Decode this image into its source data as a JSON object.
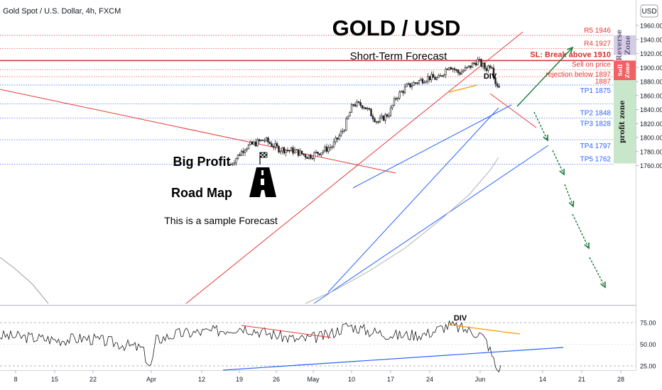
{
  "header": {
    "symbol_line": "Gold Spot / U.S. Dollar, 4h, FXCM",
    "currency_badge": "USD"
  },
  "chart_data": {
    "type": "candlestick",
    "title": "GOLD / USD",
    "subtitle": "Short-Term Forecast",
    "y_axis": {
      "range": [
        1760,
        1968
      ],
      "ticks": [
        "1960.00",
        "1940.00",
        "1920.00",
        "1900.00",
        "1880.00",
        "1860.00",
        "1840.00",
        "1820.00",
        "1800.00",
        "1780.00",
        "1760.00"
      ]
    },
    "x_axis": {
      "ticks": [
        "8",
        "15",
        "22",
        "Apr",
        "12",
        "19",
        "26",
        "May",
        "10",
        "17",
        "24",
        "Jun",
        "14",
        "21",
        "28"
      ]
    },
    "levels": [
      {
        "label": "R5 1946",
        "value": 1946,
        "color": "#e53935"
      },
      {
        "label": "R4 1927",
        "value": 1927,
        "color": "#e53935"
      },
      {
        "label": "SL: Break above 1910",
        "value": 1910,
        "color": "#d32f2f"
      },
      {
        "label": "Sell on price",
        "value": 1897,
        "color": "#e53935"
      },
      {
        "label": "rejection below 1897",
        "value": 1897,
        "color": "#e53935"
      },
      {
        "label": "1887",
        "value": 1887,
        "color": "#e53935"
      },
      {
        "label": "TP1 1875",
        "value": 1875,
        "color": "#2962ff"
      },
      {
        "label": "TP2 1848",
        "value": 1848,
        "color": "#2962ff"
      },
      {
        "label": "TP3 1828",
        "value": 1828,
        "color": "#2962ff"
      },
      {
        "label": "TP4 1797",
        "value": 1797,
        "color": "#2962ff"
      },
      {
        "label": "TP5 1762",
        "value": 1762,
        "color": "#2962ff"
      }
    ],
    "zones": [
      {
        "label": "Reverse Zone",
        "from": 1918,
        "to": 1946,
        "color": "#d5cce6"
      },
      {
        "label": "Sell Zone",
        "from": 1882,
        "to": 1910,
        "color": "#f06262"
      },
      {
        "label": "profit zone",
        "from": 1763,
        "to": 1882,
        "color": "#c8e6c9"
      }
    ],
    "annotations": {
      "div_price": "DIV",
      "div_rsi": "DIV",
      "big_profit": "Big Profit",
      "road_map": "Road Map",
      "sample": "This is a sample Forecast"
    },
    "rsi": {
      "ticks": [
        "75.00",
        "50.00",
        "25.00"
      ]
    },
    "colors": {
      "up": "#26a69a",
      "down": "#ef5350",
      "candle": "#1a1a1a",
      "resistance": "#e53935",
      "support": "#2962ff",
      "forecast": "#1b7a3a",
      "divergence": "#ff9800"
    }
  }
}
